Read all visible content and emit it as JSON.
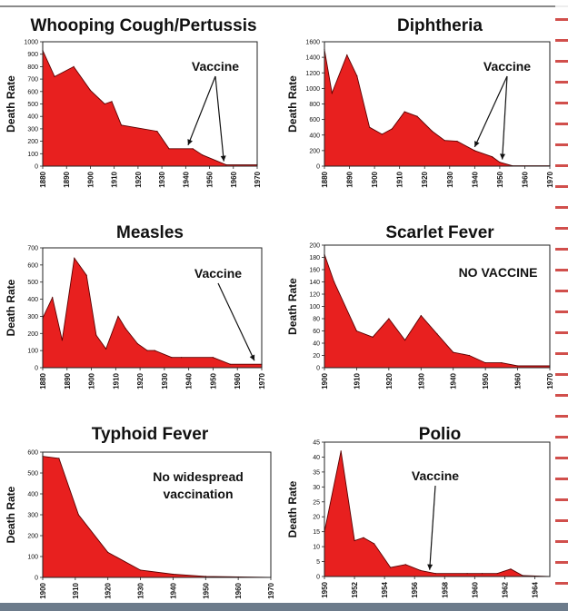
{
  "chart_data": [
    {
      "type": "area",
      "title": "Whooping Cough/Pertussis",
      "ylabel": "Death Rate",
      "xlabel": "",
      "ylim": [
        0,
        1000
      ],
      "xlim": [
        1880,
        1970
      ],
      "yticks": [
        "0",
        "100",
        "200",
        "300",
        "400",
        "500",
        "600",
        "700",
        "800",
        "900",
        "1000"
      ],
      "xticks": [
        "1880",
        "1890",
        "1900",
        "1910",
        "1920",
        "1930",
        "1940",
        "1950",
        "1960",
        "1970"
      ],
      "x": [
        1880,
        1885,
        1893,
        1900,
        1906,
        1909,
        1913,
        1928,
        1933,
        1943,
        1947,
        1957,
        1970
      ],
      "y": [
        930,
        720,
        800,
        610,
        500,
        520,
        330,
        280,
        140,
        140,
        90,
        10,
        10
      ],
      "color": "#e8201f",
      "annotation": {
        "text": "Vaccine",
        "arrows_to": [
          [
            1941,
            140
          ],
          [
            1956,
            10
          ]
        ]
      }
    },
    {
      "type": "area",
      "title": "Diphtheria",
      "ylabel": "Death Rate",
      "xlabel": "",
      "ylim": [
        0,
        1600
      ],
      "xlim": [
        1880,
        1970
      ],
      "yticks": [
        "0",
        "200",
        "400",
        "600",
        "800",
        "1000",
        "1200",
        "1400",
        "1600"
      ],
      "xticks": [
        "1880",
        "1890",
        "1900",
        "1910",
        "1920",
        "1930",
        "1940",
        "1950",
        "1960",
        "1970"
      ],
      "x": [
        1880,
        1883,
        1889,
        1893,
        1898,
        1903,
        1907,
        1912,
        1917,
        1923,
        1928,
        1933,
        1940,
        1947,
        1950,
        1955,
        1970
      ],
      "y": [
        1500,
        940,
        1430,
        1160,
        500,
        410,
        480,
        700,
        640,
        450,
        330,
        320,
        200,
        120,
        50,
        5,
        5
      ],
      "color": "#e8201f",
      "annotation": {
        "text": "Vaccine",
        "arrows_to": [
          [
            1940,
            200
          ],
          [
            1951,
            40
          ]
        ]
      }
    },
    {
      "type": "area",
      "title": "Measles",
      "ylabel": "Death Rate",
      "xlabel": "",
      "ylim": [
        0,
        700
      ],
      "xlim": [
        1880,
        1970
      ],
      "yticks": [
        "0",
        "100",
        "200",
        "300",
        "400",
        "500",
        "600",
        "700"
      ],
      "xticks": [
        "1880",
        "1890",
        "1900",
        "1910",
        "1920",
        "1930",
        "1940",
        "1950",
        "1960",
        "1970"
      ],
      "x": [
        1880,
        1884,
        1888,
        1893,
        1898,
        1902,
        1906,
        1911,
        1914,
        1919,
        1923,
        1926,
        1933,
        1937,
        1950,
        1957,
        1970
      ],
      "y": [
        290,
        410,
        160,
        640,
        540,
        190,
        110,
        300,
        230,
        140,
        100,
        100,
        60,
        60,
        60,
        20,
        20
      ],
      "color": "#e8201f",
      "annotation": {
        "text": "Vaccine",
        "arrows_to": [
          [
            1967,
            20
          ]
        ]
      }
    },
    {
      "type": "area",
      "title": "Scarlet Fever",
      "ylabel": "Death Rate",
      "xlabel": "",
      "ylim": [
        0,
        200
      ],
      "xlim": [
        1900,
        1970
      ],
      "yticks": [
        "0",
        "20",
        "40",
        "60",
        "80",
        "100",
        "120",
        "140",
        "160",
        "180",
        "200"
      ],
      "xticks": [
        "1900",
        "1910",
        "1920",
        "1930",
        "1940",
        "1950",
        "1960",
        "1970"
      ],
      "x": [
        1900,
        1903,
        1910,
        1915,
        1920,
        1925,
        1930,
        1935,
        1940,
        1945,
        1950,
        1955,
        1960,
        1970
      ],
      "y": [
        185,
        140,
        60,
        50,
        80,
        45,
        85,
        55,
        25,
        20,
        8,
        8,
        3,
        3
      ],
      "color": "#e8201f",
      "annotation": {
        "text": "NO VACCINE",
        "arrows_to": []
      }
    },
    {
      "type": "area",
      "title": "Typhoid Fever",
      "ylabel": "Death Rate",
      "xlabel": "",
      "ylim": [
        0,
        600
      ],
      "xlim": [
        1900,
        1970
      ],
      "yticks": [
        "0",
        "100",
        "200",
        "300",
        "400",
        "500",
        "600"
      ],
      "xticks": [
        "1900",
        "1910",
        "1920",
        "1930",
        "1940",
        "1950",
        "1960",
        "1970"
      ],
      "x": [
        1900,
        1905,
        1911,
        1920,
        1930,
        1940,
        1950,
        1960,
        1970
      ],
      "y": [
        580,
        570,
        300,
        120,
        35,
        15,
        5,
        2,
        0
      ],
      "color": "#e8201f",
      "annotation": {
        "text": "No widespread vaccination",
        "lines": [
          "No widespread",
          "vaccination"
        ],
        "arrows_to": []
      }
    },
    {
      "type": "area",
      "title": "Polio",
      "ylabel": "Death Rate",
      "xlabel": "",
      "ylim": [
        0,
        45
      ],
      "xlim": [
        1950,
        1965
      ],
      "yticks": [
        "0",
        "5",
        "10",
        "15",
        "20",
        "25",
        "30",
        "35",
        "40",
        "45"
      ],
      "xticks": [
        "1950",
        "1952",
        "1954",
        "1956",
        "1958",
        "1960",
        "1962",
        "1964"
      ],
      "x": [
        1950,
        1951.1,
        1952,
        1952.6,
        1953.3,
        1954.4,
        1955.4,
        1956.4,
        1957.4,
        1959.5,
        1960.5,
        1961.5,
        1962.4,
        1963.2,
        1965
      ],
      "y": [
        15,
        42,
        12,
        13,
        11,
        3,
        4,
        2,
        1,
        1,
        1,
        1,
        2.5,
        0.3,
        0
      ],
      "color": "#e8201f",
      "annotation": {
        "text": "Vaccine",
        "arrows_to": [
          [
            1957,
            1
          ]
        ]
      }
    }
  ]
}
